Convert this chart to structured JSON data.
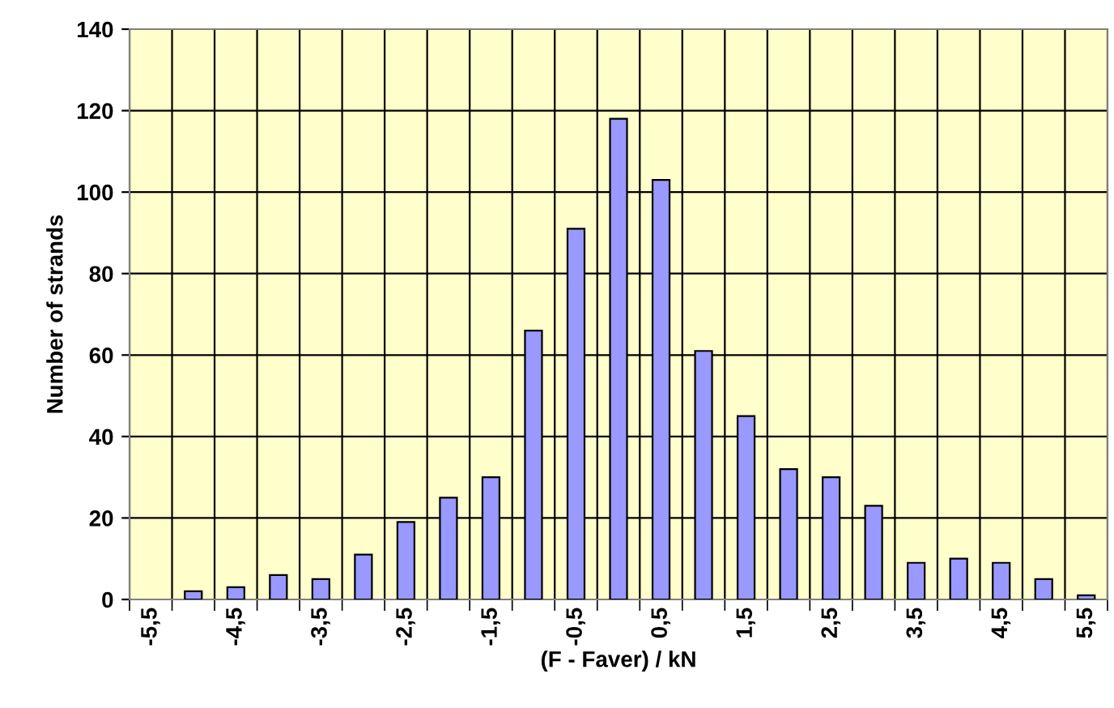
{
  "chart_data": {
    "type": "bar",
    "xlabel": "(F - Faver) / kN",
    "ylabel": "Number of strands",
    "categories": [
      "-5,5",
      null,
      "-4,5",
      null,
      "-3,5",
      null,
      "-2,5",
      null,
      "-1,5",
      null,
      "-0,5",
      null,
      "0,5",
      null,
      "1,5",
      null,
      "2,5",
      null,
      "3,5",
      null,
      "4,5",
      null,
      "5,5"
    ],
    "values": [
      null,
      2,
      3,
      6,
      5,
      11,
      19,
      25,
      30,
      66,
      91,
      118,
      103,
      61,
      45,
      32,
      30,
      23,
      9,
      10,
      9,
      5,
      1
    ],
    "color": "#9999ff",
    "ylim": [
      0,
      140
    ],
    "yticks": [
      0,
      20,
      40,
      60,
      80,
      100,
      120,
      140
    ],
    "grid": true
  }
}
